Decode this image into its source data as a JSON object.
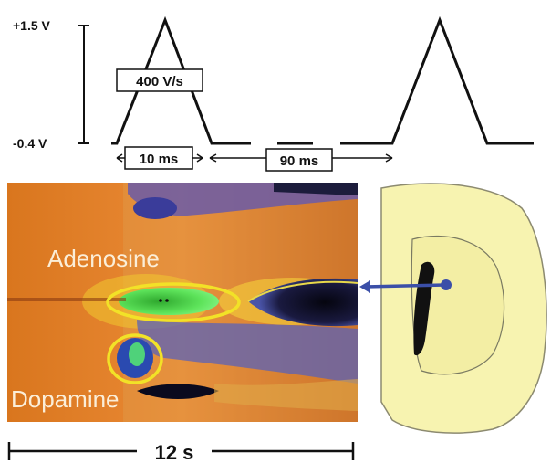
{
  "waveform": {
    "voltage_high": "+1.5 V",
    "voltage_low": "-0.4 V",
    "scan_rate": "400 V/s",
    "scan_duration": "10 ms",
    "interval": "90 ms"
  },
  "color_plot": {
    "adenosine_label": "Adenosine",
    "dopamine_label": "Dopamine",
    "time_scale": "12 s"
  },
  "colors": {
    "background_orange": "#e07a22",
    "circle_yellow": "#f2e227",
    "green_signal": "#3ed43a",
    "probe_blue": "#3b4fa8",
    "tissue_fill": "#f7f3b0"
  }
}
